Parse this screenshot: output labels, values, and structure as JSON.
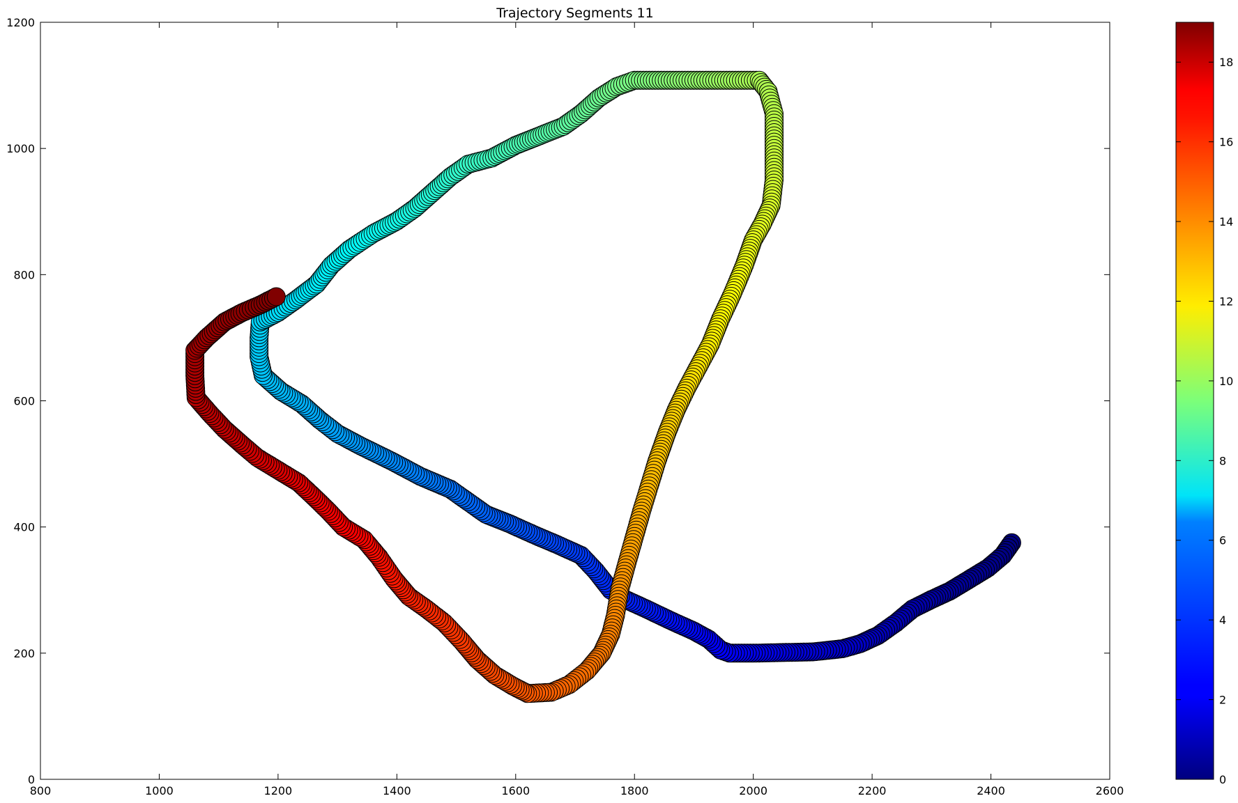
{
  "chart_data": {
    "type": "scatter",
    "title": "Trajectory Segments 11",
    "xlim": [
      800,
      2600
    ],
    "ylim": [
      0,
      1200
    ],
    "x_ticks": [
      800,
      1000,
      1200,
      1400,
      1600,
      1800,
      2000,
      2200,
      2400,
      2600
    ],
    "y_ticks": [
      0,
      200,
      400,
      600,
      800,
      1000,
      1200
    ],
    "grid": false,
    "colormap": "jet",
    "colorbar": {
      "range": [
        0,
        19
      ],
      "ticks": [
        0,
        2,
        4,
        6,
        8,
        10,
        12,
        14,
        16,
        18
      ]
    },
    "path": [
      [
        2435,
        375
      ],
      [
        2420,
        355
      ],
      [
        2395,
        335
      ],
      [
        2360,
        315
      ],
      [
        2330,
        298
      ],
      [
        2300,
        285
      ],
      [
        2268,
        270
      ],
      [
        2240,
        248
      ],
      [
        2210,
        228
      ],
      [
        2180,
        215
      ],
      [
        2150,
        207
      ],
      [
        2100,
        202
      ],
      [
        2050,
        201
      ],
      [
        2000,
        200
      ],
      [
        1960,
        200
      ],
      [
        1945,
        205
      ],
      [
        1925,
        222
      ],
      [
        1900,
        235
      ],
      [
        1860,
        252
      ],
      [
        1820,
        270
      ],
      [
        1785,
        285
      ],
      [
        1760,
        300
      ],
      [
        1735,
        330
      ],
      [
        1710,
        355
      ],
      [
        1670,
        372
      ],
      [
        1630,
        388
      ],
      [
        1590,
        405
      ],
      [
        1550,
        420
      ],
      [
        1520,
        440
      ],
      [
        1490,
        460
      ],
      [
        1440,
        480
      ],
      [
        1390,
        505
      ],
      [
        1340,
        528
      ],
      [
        1300,
        548
      ],
      [
        1270,
        570
      ],
      [
        1240,
        595
      ],
      [
        1205,
        615
      ],
      [
        1175,
        640
      ],
      [
        1168,
        670
      ],
      [
        1168,
        700
      ],
      [
        1170,
        725
      ],
      [
        1200,
        740
      ],
      [
        1230,
        760
      ],
      [
        1265,
        785
      ],
      [
        1290,
        815
      ],
      [
        1320,
        840
      ],
      [
        1360,
        865
      ],
      [
        1400,
        885
      ],
      [
        1430,
        905
      ],
      [
        1460,
        930
      ],
      [
        1490,
        955
      ],
      [
        1520,
        975
      ],
      [
        1560,
        985
      ],
      [
        1600,
        1005
      ],
      [
        1640,
        1020
      ],
      [
        1680,
        1035
      ],
      [
        1710,
        1055
      ],
      [
        1740,
        1080
      ],
      [
        1770,
        1098
      ],
      [
        1800,
        1108
      ],
      [
        1850,
        1108
      ],
      [
        1900,
        1108
      ],
      [
        1950,
        1108
      ],
      [
        2010,
        1108
      ],
      [
        2025,
        1090
      ],
      [
        2035,
        1055
      ],
      [
        2035,
        1000
      ],
      [
        2035,
        950
      ],
      [
        2030,
        910
      ],
      [
        2015,
        880
      ],
      [
        2000,
        855
      ],
      [
        1985,
        815
      ],
      [
        1965,
        770
      ],
      [
        1945,
        730
      ],
      [
        1928,
        690
      ],
      [
        1908,
        655
      ],
      [
        1888,
        620
      ],
      [
        1870,
        585
      ],
      [
        1855,
        550
      ],
      [
        1838,
        505
      ],
      [
        1825,
        465
      ],
      [
        1812,
        425
      ],
      [
        1800,
        385
      ],
      [
        1788,
        345
      ],
      [
        1775,
        300
      ],
      [
        1768,
        260
      ],
      [
        1760,
        230
      ],
      [
        1745,
        200
      ],
      [
        1720,
        172
      ],
      [
        1690,
        150
      ],
      [
        1660,
        138
      ],
      [
        1620,
        136
      ],
      [
        1595,
        148
      ],
      [
        1565,
        165
      ],
      [
        1535,
        190
      ],
      [
        1510,
        218
      ],
      [
        1480,
        248
      ],
      [
        1450,
        270
      ],
      [
        1420,
        290
      ],
      [
        1395,
        318
      ],
      [
        1370,
        352
      ],
      [
        1345,
        380
      ],
      [
        1310,
        400
      ],
      [
        1285,
        425
      ],
      [
        1260,
        448
      ],
      [
        1235,
        470
      ],
      [
        1200,
        490
      ],
      [
        1165,
        510
      ],
      [
        1140,
        530
      ],
      [
        1110,
        555
      ],
      [
        1085,
        580
      ],
      [
        1062,
        605
      ],
      [
        1060,
        640
      ],
      [
        1060,
        680
      ],
      [
        1080,
        700
      ],
      [
        1110,
        725
      ],
      [
        1140,
        740
      ],
      [
        1170,
        752
      ],
      [
        1197,
        765
      ]
    ]
  }
}
